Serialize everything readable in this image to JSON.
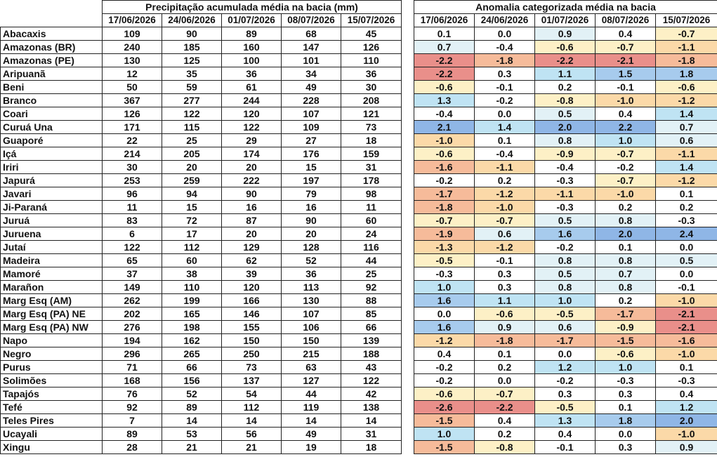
{
  "precip_title": "Precipitação acumulada média na bacia (mm)",
  "anom_title": "Anomalia categorizada média na bacia",
  "dates": [
    "17/06/2026",
    "24/06/2026",
    "01/07/2026",
    "08/07/2026",
    "15/07/2026"
  ],
  "rows": [
    {
      "name": "Abacaxis",
      "precip": [
        "109",
        "90",
        "89",
        "68",
        "45"
      ],
      "anom": [
        "0.1",
        "0.0",
        "0.9",
        "0.4",
        "-0.7"
      ]
    },
    {
      "name": "Amazonas (BR)",
      "precip": [
        "240",
        "185",
        "160",
        "147",
        "126"
      ],
      "anom": [
        "0.7",
        "-0.4",
        "-0.6",
        "-0.7",
        "-1.1"
      ]
    },
    {
      "name": "Amazonas (PE)",
      "precip": [
        "130",
        "125",
        "100",
        "101",
        "110"
      ],
      "anom": [
        "-2.2",
        "-1.8",
        "-2.2",
        "-2.1",
        "-1.8"
      ]
    },
    {
      "name": "Aripuanã",
      "precip": [
        "12",
        "35",
        "36",
        "34",
        "36"
      ],
      "anom": [
        "-2.2",
        "0.3",
        "1.1",
        "1.5",
        "1.8"
      ]
    },
    {
      "name": "Beni",
      "precip": [
        "50",
        "59",
        "61",
        "49",
        "30"
      ],
      "anom": [
        "-0.6",
        "-0.1",
        "0.2",
        "-0.1",
        "-0.6"
      ]
    },
    {
      "name": "Branco",
      "precip": [
        "367",
        "277",
        "244",
        "228",
        "208"
      ],
      "anom": [
        "1.3",
        "-0.2",
        "-0.8",
        "-1.0",
        "-1.2"
      ]
    },
    {
      "name": "Coari",
      "precip": [
        "126",
        "122",
        "120",
        "107",
        "121"
      ],
      "anom": [
        "-0.4",
        "0.0",
        "0.5",
        "0.4",
        "1.4"
      ]
    },
    {
      "name": "Curuá Una",
      "precip": [
        "171",
        "115",
        "122",
        "109",
        "73"
      ],
      "anom": [
        "2.1",
        "1.4",
        "2.0",
        "2.2",
        "0.7"
      ]
    },
    {
      "name": "Guaporé",
      "precip": [
        "22",
        "25",
        "29",
        "27",
        "18"
      ],
      "anom": [
        "-1.0",
        "0.1",
        "0.8",
        "1.0",
        "0.6"
      ]
    },
    {
      "name": "Içá",
      "precip": [
        "214",
        "205",
        "174",
        "176",
        "159"
      ],
      "anom": [
        "-0.6",
        "-0.4",
        "-0.9",
        "-0.7",
        "-1.1"
      ]
    },
    {
      "name": "Iriri",
      "precip": [
        "30",
        "20",
        "20",
        "15",
        "31"
      ],
      "anom": [
        "-1.6",
        "-1.1",
        "-0.4",
        "-0.2",
        "1.4"
      ]
    },
    {
      "name": "Japurá",
      "precip": [
        "253",
        "259",
        "222",
        "197",
        "178"
      ],
      "anom": [
        "-0.2",
        "0.2",
        "-0.3",
        "-0.7",
        "-1.2"
      ]
    },
    {
      "name": "Javari",
      "precip": [
        "96",
        "94",
        "90",
        "79",
        "98"
      ],
      "anom": [
        "-1.7",
        "-1.2",
        "-1.1",
        "-1.0",
        "0.1"
      ]
    },
    {
      "name": "Ji-Paraná",
      "precip": [
        "11",
        "15",
        "16",
        "16",
        "11"
      ],
      "anom": [
        "-1.8",
        "-1.0",
        "-0.3",
        "0.2",
        "0.2"
      ]
    },
    {
      "name": "Juruá",
      "precip": [
        "83",
        "72",
        "87",
        "90",
        "60"
      ],
      "anom": [
        "-0.7",
        "-0.7",
        "0.5",
        "0.8",
        "-0.3"
      ]
    },
    {
      "name": "Juruena",
      "precip": [
        "6",
        "17",
        "20",
        "20",
        "24"
      ],
      "anom": [
        "-1.9",
        "0.6",
        "1.6",
        "2.0",
        "2.4"
      ]
    },
    {
      "name": "Jutaí",
      "precip": [
        "122",
        "112",
        "129",
        "128",
        "116"
      ],
      "anom": [
        "-1.3",
        "-1.2",
        "-0.2",
        "0.1",
        "0.0"
      ]
    },
    {
      "name": "Madeira",
      "precip": [
        "65",
        "60",
        "62",
        "52",
        "44"
      ],
      "anom": [
        "-0.5",
        "-0.1",
        "0.8",
        "0.8",
        "0.5"
      ]
    },
    {
      "name": "Mamoré",
      "precip": [
        "37",
        "38",
        "39",
        "36",
        "25"
      ],
      "anom": [
        "-0.3",
        "0.3",
        "0.5",
        "0.7",
        "0.0"
      ]
    },
    {
      "name": "Marañon",
      "precip": [
        "149",
        "110",
        "120",
        "113",
        "92"
      ],
      "anom": [
        "1.0",
        "0.3",
        "0.8",
        "0.8",
        "-0.1"
      ]
    },
    {
      "name": "Marg Esq (AM)",
      "precip": [
        "262",
        "199",
        "166",
        "130",
        "88"
      ],
      "anom": [
        "1.6",
        "1.1",
        "1.0",
        "0.2",
        "-1.0"
      ]
    },
    {
      "name": "Marg Esq (PA) NE",
      "precip": [
        "202",
        "165",
        "146",
        "107",
        "85"
      ],
      "anom": [
        "0.0",
        "-0.6",
        "-0.5",
        "-1.7",
        "-2.1"
      ]
    },
    {
      "name": "Marg Esq (PA) NW",
      "precip": [
        "276",
        "198",
        "155",
        "106",
        "66"
      ],
      "anom": [
        "1.6",
        "0.9",
        "0.6",
        "-0.9",
        "-2.1"
      ]
    },
    {
      "name": "Napo",
      "precip": [
        "194",
        "162",
        "150",
        "150",
        "139"
      ],
      "anom": [
        "-1.2",
        "-1.8",
        "-1.7",
        "-1.5",
        "-1.6"
      ]
    },
    {
      "name": "Negro",
      "precip": [
        "296",
        "265",
        "250",
        "215",
        "188"
      ],
      "anom": [
        "0.4",
        "0.1",
        "0.0",
        "-0.6",
        "-1.0"
      ]
    },
    {
      "name": "Purus",
      "precip": [
        "71",
        "66",
        "73",
        "63",
        "43"
      ],
      "anom": [
        "-0.2",
        "0.2",
        "1.2",
        "1.0",
        "0.1"
      ]
    },
    {
      "name": "Solimões",
      "precip": [
        "168",
        "156",
        "137",
        "127",
        "122"
      ],
      "anom": [
        "-0.2",
        "0.0",
        "-0.2",
        "-0.3",
        "-0.3"
      ]
    },
    {
      "name": "Tapajós",
      "precip": [
        "76",
        "52",
        "54",
        "44",
        "42"
      ],
      "anom": [
        "-0.6",
        "-0.7",
        "0.3",
        "0.3",
        "0.4"
      ]
    },
    {
      "name": "Tefé",
      "precip": [
        "92",
        "89",
        "112",
        "119",
        "138"
      ],
      "anom": [
        "-2.6",
        "-2.2",
        "-0.5",
        "0.1",
        "1.2"
      ]
    },
    {
      "name": "Teles Pires",
      "precip": [
        "7",
        "14",
        "14",
        "14",
        "14"
      ],
      "anom": [
        "-1.5",
        "0.4",
        "1.3",
        "1.8",
        "2.0"
      ]
    },
    {
      "name": "Ucayali",
      "precip": [
        "89",
        "53",
        "56",
        "49",
        "31"
      ],
      "anom": [
        "1.0",
        "0.2",
        "0.4",
        "0.0",
        "-1.0"
      ]
    },
    {
      "name": "Xingu",
      "precip": [
        "28",
        "21",
        "21",
        "19",
        "18"
      ],
      "anom": [
        "-1.5",
        "-0.8",
        "-0.1",
        "0.3",
        "0.9"
      ]
    }
  ],
  "color_scale": {
    "strong_dry": "#e98f8a",
    "dry": "#f6bb9a",
    "moderate_dry": "#fbd9a8",
    "slight_dry": "#fdf0c6",
    "neutral": "#ffffff",
    "slight_wet": "#e2f1f6",
    "moderate_wet": "#bfe3f3",
    "wet": "#a7cbed",
    "strong_wet": "#8fb6e6"
  }
}
